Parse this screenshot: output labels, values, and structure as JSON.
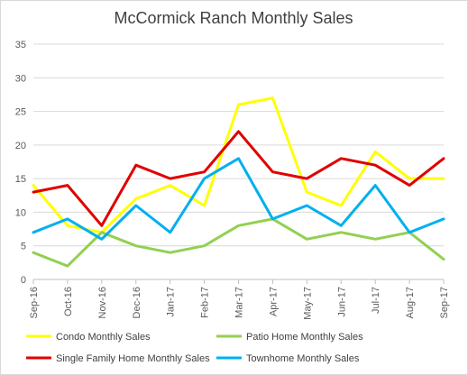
{
  "chart_data": {
    "type": "line",
    "title": "McCormick Ranch Monthly Sales",
    "xlabel": "",
    "ylabel": "",
    "categories": [
      "Sep-16",
      "Oct-16",
      "Nov-16",
      "Dec-16",
      "Jan-17",
      "Feb-17",
      "Mar-17",
      "Apr-17",
      "May-17",
      "Jun-17",
      "Jul-17",
      "Aug-17",
      "Sep-17"
    ],
    "ylim": [
      0,
      35
    ],
    "yticks": [
      0,
      5,
      10,
      15,
      20,
      25,
      30,
      35
    ],
    "grid": "horizontal",
    "legend_position": "bottom",
    "series": [
      {
        "name": "Condo Monthly Sales",
        "color": "#FFFF00",
        "values": [
          14,
          8,
          7,
          12,
          14,
          11,
          26,
          27,
          13,
          11,
          19,
          15,
          15
        ]
      },
      {
        "name": "Patio Home Monthly Sales",
        "color": "#92D050",
        "values": [
          4,
          2,
          7,
          5,
          4,
          5,
          8,
          9,
          6,
          7,
          6,
          7,
          3
        ]
      },
      {
        "name": "Single Family Home Monthly Sales",
        "color": "#E00000",
        "values": [
          13,
          14,
          8,
          17,
          15,
          16,
          22,
          16,
          15,
          18,
          17,
          14,
          18
        ]
      },
      {
        "name": "Townhome Monthly Sales",
        "color": "#00B0F0",
        "values": [
          7,
          9,
          6,
          11,
          7,
          15,
          18,
          9,
          11,
          8,
          14,
          7,
          9
        ]
      }
    ]
  }
}
